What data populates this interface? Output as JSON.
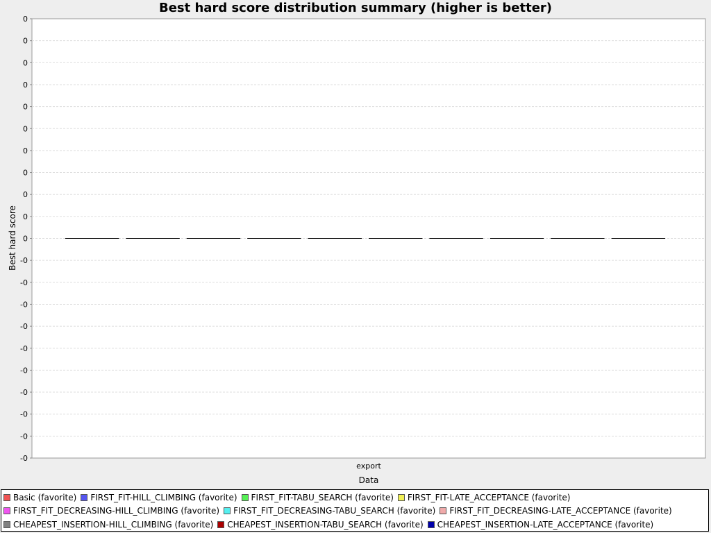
{
  "chart_data": {
    "type": "boxplot",
    "title": "Best hard score distribution summary (higher is better)",
    "xlabel": "Data",
    "ylabel": "Best hard score",
    "categories": [
      "export"
    ],
    "y_tick_labels": [
      "0",
      "0",
      "0",
      "0",
      "0",
      "0",
      "0",
      "0",
      "0",
      "0",
      "0",
      "-0",
      "-0",
      "-0",
      "-0",
      "-0",
      "-0",
      "-0",
      "-0",
      "-0",
      "-0"
    ],
    "grid": true,
    "legend_position": "bottom",
    "series": [
      {
        "name": "Basic (favorite)",
        "color": "#f05555",
        "values": [
          0
        ]
      },
      {
        "name": "FIRST_FIT-HILL_CLIMBING (favorite)",
        "color": "#5555f0",
        "values": [
          0
        ]
      },
      {
        "name": "FIRST_FIT-TABU_SEARCH (favorite)",
        "color": "#55f055",
        "values": [
          0
        ]
      },
      {
        "name": "FIRST_FIT-LATE_ACCEPTANCE (favorite)",
        "color": "#f0f055",
        "values": [
          0
        ]
      },
      {
        "name": "FIRST_FIT_DECREASING-HILL_CLIMBING (favorite)",
        "color": "#f055f0",
        "values": [
          0
        ]
      },
      {
        "name": "FIRST_FIT_DECREASING-TABU_SEARCH (favorite)",
        "color": "#55f0f0",
        "values": [
          0
        ]
      },
      {
        "name": "FIRST_FIT_DECREASING-LATE_ACCEPTANCE (favorite)",
        "color": "#f0aaaa",
        "values": [
          0
        ]
      },
      {
        "name": "CHEAPEST_INSERTION-HILL_CLIMBING (favorite)",
        "color": "#808080",
        "values": [
          0
        ]
      },
      {
        "name": "CHEAPEST_INSERTION-TABU_SEARCH (favorite)",
        "color": "#aa0000",
        "values": [
          0
        ]
      },
      {
        "name": "CHEAPEST_INSERTION-LATE_ACCEPTANCE (favorite)",
        "color": "#0000aa",
        "values": [
          0
        ]
      }
    ]
  }
}
